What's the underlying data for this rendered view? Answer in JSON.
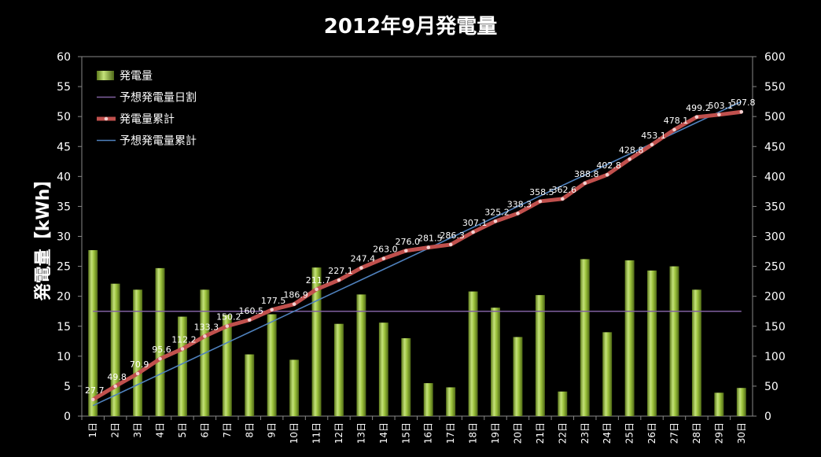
{
  "chart_data": {
    "type": "bar",
    "title": "2012年9月発電量",
    "ylabel": "発電量【kWh】",
    "ylim": [
      0,
      60
    ],
    "y2lim": [
      0,
      600
    ],
    "yticks": [
      0,
      5,
      10,
      15,
      20,
      25,
      30,
      35,
      40,
      45,
      50,
      55,
      60
    ],
    "y2ticks": [
      0,
      50,
      100,
      150,
      200,
      250,
      300,
      350,
      400,
      450,
      500,
      550,
      600
    ],
    "categories": [
      "1日",
      "2日",
      "3日",
      "4日",
      "5日",
      "6日",
      "7日",
      "8日",
      "9日",
      "10日",
      "11日",
      "12日",
      "13日",
      "14日",
      "15日",
      "16日",
      "17日",
      "18日",
      "19日",
      "20日",
      "21日",
      "22日",
      "23日",
      "24日",
      "25日",
      "26日",
      "27日",
      "28日",
      "29日",
      "30日"
    ],
    "series": [
      {
        "name": "発電量",
        "type": "bar",
        "axis": "left",
        "color": "#8fb834",
        "values": [
          27.7,
          22.1,
          21.1,
          24.7,
          16.6,
          21.1,
          16.9,
          10.3,
          17.0,
          9.4,
          24.8,
          15.4,
          20.3,
          15.6,
          13.0,
          5.5,
          4.8,
          20.8,
          18.1,
          13.2,
          20.2,
          4.1,
          26.2,
          14.0,
          26.0,
          24.3,
          25.0,
          21.1,
          3.9,
          4.7
        ]
      },
      {
        "name": "予想発電量日割",
        "type": "line",
        "axis": "left",
        "color": "#8060a0",
        "values": [
          17.5,
          17.5,
          17.5,
          17.5,
          17.5,
          17.5,
          17.5,
          17.5,
          17.5,
          17.5,
          17.5,
          17.5,
          17.5,
          17.5,
          17.5,
          17.5,
          17.5,
          17.5,
          17.5,
          17.5,
          17.5,
          17.5,
          17.5,
          17.5,
          17.5,
          17.5,
          17.5,
          17.5,
          17.5,
          17.5
        ]
      },
      {
        "name": "発電量累計",
        "type": "line",
        "axis": "right",
        "color": "#c0504d",
        "values": [
          27.7,
          49.8,
          70.9,
          95.6,
          112.2,
          133.3,
          150.2,
          160.5,
          177.5,
          186.9,
          211.7,
          227.1,
          247.4,
          263.0,
          276.0,
          281.5,
          286.3,
          307.1,
          325.2,
          338.3,
          358.5,
          362.6,
          388.8,
          402.8,
          428.8,
          453.1,
          478.1,
          499.2,
          503.1,
          507.8
        ],
        "labels": [
          "27.7",
          "49.8",
          "70.9",
          "95.6",
          "112.2",
          "133.3",
          "150.2",
          "160.5",
          "177.5",
          "186.9",
          "211.7",
          "227.1",
          "247.4",
          "263.0",
          "276.0",
          "281.5",
          "286.3",
          "307.1",
          "325.2",
          "338.3",
          "358.5",
          "362.6",
          "388.8",
          "402.8",
          "428.8",
          "453.1",
          "478.1",
          "499.2",
          "503.1",
          "507.8"
        ]
      },
      {
        "name": "予想発電量累計",
        "type": "line",
        "axis": "right",
        "color": "#4f81bd",
        "values": [
          17.5,
          35,
          52.5,
          70,
          87.5,
          105,
          122.5,
          140,
          157.5,
          175,
          192.5,
          210,
          227.5,
          245,
          262.5,
          280,
          297.5,
          315,
          332.5,
          350,
          367.5,
          385,
          402.5,
          420,
          437.5,
          455,
          472.5,
          490,
          507.5,
          525
        ]
      }
    ],
    "legend": "top-left"
  }
}
